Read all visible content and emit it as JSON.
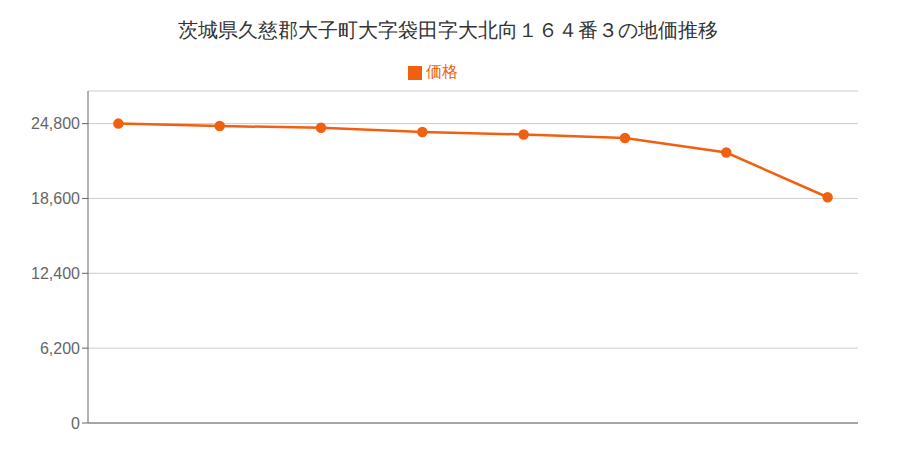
{
  "chart_data": {
    "type": "line",
    "title": "茨城県久慈郡大子町大字袋田字大北向１６４番３の地価推移",
    "x": [
      0,
      1,
      2,
      3,
      4,
      5,
      6,
      7
    ],
    "series": [
      {
        "name": "価格",
        "color": "#f06010",
        "marker": "o",
        "values": [
          24800,
          24600,
          24450,
          24100,
          23900,
          23600,
          22400,
          18700
        ]
      }
    ],
    "xlim": [
      -0.3,
      7.3
    ],
    "ylim": [
      0,
      27500
    ],
    "yticks": [
      0,
      {
        "value": 6200,
        "label": "6,200"
      },
      {
        "value": 12400,
        "label": "12,400"
      },
      {
        "value": 18600,
        "label": "18,600"
      },
      {
        "value": 24800,
        "label": "24,800"
      }
    ],
    "grid": true,
    "legend": "top",
    "tick_labels": "y"
  }
}
